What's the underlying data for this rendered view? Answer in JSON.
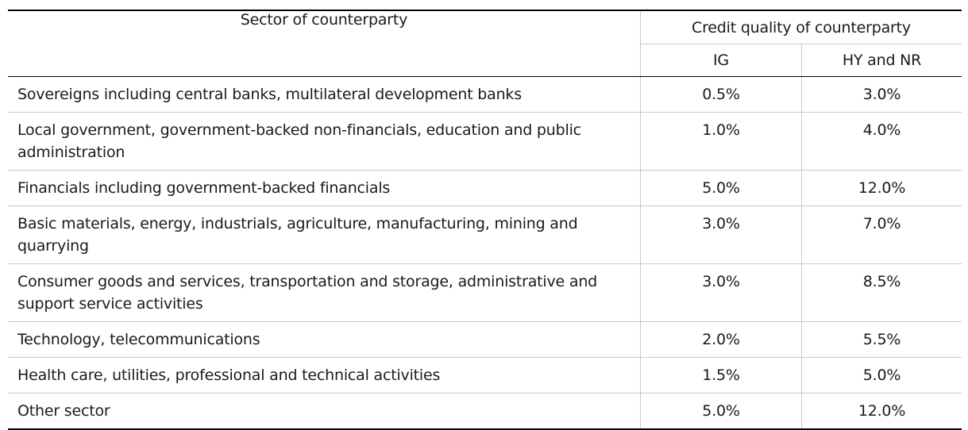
{
  "header": {
    "sector": "Sector of counterparty",
    "credit_quality": "Credit quality of counterparty",
    "ig": "IG",
    "hy_nr": "HY and NR"
  },
  "rows": [
    {
      "sector": "Sovereigns including central banks, multilateral development banks",
      "ig": "0.5%",
      "hy_nr": "3.0%"
    },
    {
      "sector": "Local government, government-backed non-financials, education and public administration",
      "ig": "1.0%",
      "hy_nr": "4.0%"
    },
    {
      "sector": "Financials including government-backed financials",
      "ig": "5.0%",
      "hy_nr": "12.0%"
    },
    {
      "sector": "Basic materials, energy, industrials, agriculture, manufacturing, mining and quarrying",
      "ig": "3.0%",
      "hy_nr": "7.0%"
    },
    {
      "sector": "Consumer goods and services, transportation and storage, administrative and support service activities",
      "ig": "3.0%",
      "hy_nr": "8.5%"
    },
    {
      "sector": "Technology, telecommunications",
      "ig": "2.0%",
      "hy_nr": "5.5%"
    },
    {
      "sector": "Health care, utilities, professional and technical activities",
      "ig": "1.5%",
      "hy_nr": "5.0%"
    },
    {
      "sector": "Other sector",
      "ig": "5.0%",
      "hy_nr": "12.0%"
    }
  ]
}
